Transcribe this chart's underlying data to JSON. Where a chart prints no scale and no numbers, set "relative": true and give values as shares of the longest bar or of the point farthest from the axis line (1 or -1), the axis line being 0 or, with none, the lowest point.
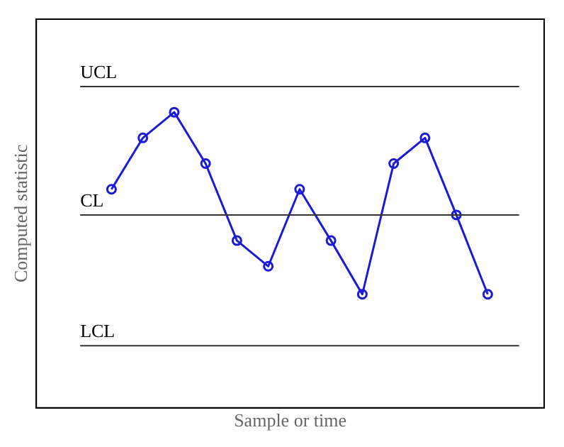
{
  "chart_data": {
    "type": "line",
    "relative": true,
    "xlabel": "Sample or time",
    "ylabel": "Computed statistic",
    "categories": [
      null,
      null,
      null,
      null,
      null,
      null,
      null,
      null,
      null,
      null,
      null,
      null,
      null
    ],
    "series": [
      {
        "color": "#1a1ad8",
        "values": [
          0.67,
          0.89,
          1,
          0.78,
          0.45,
          0.34,
          0.67,
          0.45,
          0.22,
          0.78,
          0.89,
          0.56,
          0.22
        ]
      }
    ],
    "ref_lines": [
      {
        "axis": "y",
        "value": 1.11,
        "label": "UCL",
        "color": "#333333"
      },
      {
        "axis": "y",
        "value": 0.56,
        "label": "CL",
        "color": "#333333"
      },
      {
        "axis": "y",
        "value": 0,
        "label": "LCL",
        "color": "#333333"
      }
    ],
    "grid": false,
    "legend": false,
    "marker": "circle",
    "line_style": "solid"
  }
}
